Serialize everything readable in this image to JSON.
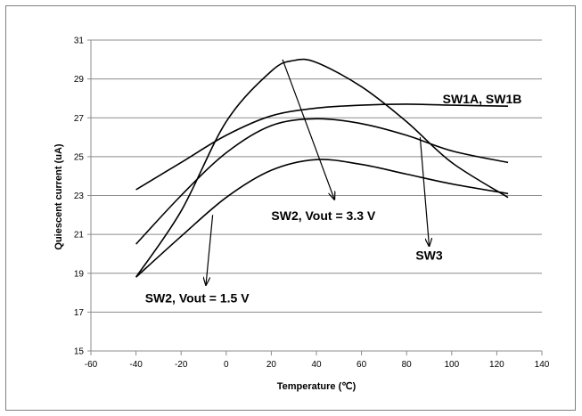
{
  "chart_data": {
    "type": "line",
    "xlabel": "Temperature (℃)",
    "ylabel": "Quiescent current (uA)",
    "xlim": [
      -60,
      140
    ],
    "ylim": [
      15,
      31
    ],
    "xticks": [
      -60,
      -40,
      -20,
      0,
      20,
      40,
      60,
      80,
      100,
      120,
      140
    ],
    "yticks": [
      15,
      17,
      19,
      21,
      23,
      25,
      27,
      29,
      31
    ],
    "grid": true,
    "legend": "none",
    "series": [
      {
        "x": [
          -40,
          -20,
          0,
          20,
          40,
          60,
          80,
          100,
          125
        ],
        "y": [
          23.3,
          24.7,
          26.1,
          27.1,
          27.5,
          27.65,
          27.7,
          27.65,
          27.6
        ]
      },
      {
        "x": [
          -40,
          -20,
          0,
          20,
          40,
          60,
          80,
          100,
          125
        ],
        "y": [
          20.5,
          23.0,
          25.2,
          26.6,
          26.95,
          26.7,
          26.1,
          25.3,
          24.7
        ]
      },
      {
        "x": [
          -40,
          -20,
          0,
          20,
          30,
          40,
          60,
          80,
          100,
          125
        ],
        "y": [
          18.8,
          22.2,
          26.8,
          29.4,
          29.95,
          29.85,
          28.6,
          26.8,
          24.7,
          22.9
        ]
      },
      {
        "x": [
          -40,
          -20,
          0,
          20,
          40,
          60,
          80,
          100,
          125
        ],
        "y": [
          18.8,
          20.9,
          22.9,
          24.3,
          24.85,
          24.6,
          24.1,
          23.6,
          23.1
        ]
      }
    ],
    "annotations": [
      {
        "text": "SW1A, SW1B",
        "x": 96,
        "y": 27.75
      },
      {
        "text": "SW2, Vout = 3.3 V",
        "x": 20,
        "y": 21.75,
        "arrow_from": [
          25,
          30.0
        ],
        "arrow_to": [
          48,
          22.8
        ]
      },
      {
        "text": "SW3",
        "x": 84,
        "y": 19.7,
        "arrow_from": [
          86,
          26.0
        ],
        "arrow_to": [
          90,
          20.4
        ]
      },
      {
        "text": "SW2, Vout = 1.5 V",
        "x": -36,
        "y": 17.5,
        "arrow_from": [
          -6,
          22.0
        ],
        "arrow_to": [
          -9,
          18.4
        ]
      }
    ]
  }
}
